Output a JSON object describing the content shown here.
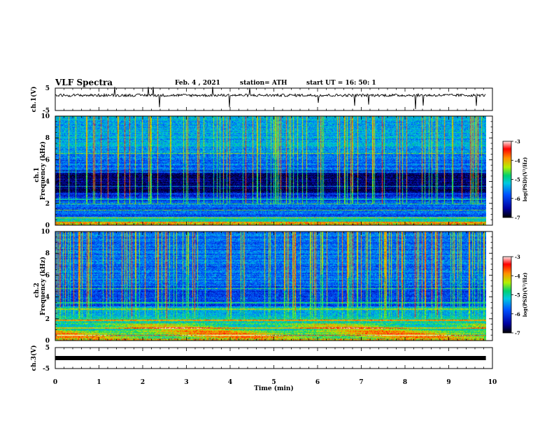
{
  "header": {
    "title": "VLF Spectra",
    "date": "Feb. 4 , 2021",
    "station": "station= ATH",
    "start": "start  UT =   16: 50: 1"
  },
  "chart_data": [
    {
      "type": "line",
      "panel": "ch1-waveform",
      "ylabel": "ch.1(V)",
      "ylim": [
        -5,
        5
      ],
      "yticks": [
        5,
        -5
      ],
      "xlim": [
        0,
        10
      ],
      "baseline_v": 1.8,
      "color": "#000000"
    },
    {
      "type": "heatmap",
      "panel": "ch1-spectrogram",
      "ylabel_line1": "ch.1",
      "ylabel_line2": "Frequency  (kHz)",
      "ylim": [
        0,
        10
      ],
      "yticks": [
        0,
        2,
        4,
        6,
        8,
        10
      ],
      "xlim": [
        0,
        9.85
      ],
      "colorbar": {
        "label": "log(PSD)(V²/Hz)",
        "range": [
          -7,
          -3
        ],
        "ticks": [
          -3,
          -4,
          -5,
          -6,
          -7
        ]
      }
    },
    {
      "type": "heatmap",
      "panel": "ch2-spectrogram",
      "ylabel_line1": "ch.2",
      "ylabel_line2": "Frequency  (kHz)",
      "ylim": [
        0,
        10
      ],
      "yticks": [
        0,
        2,
        4,
        6,
        8,
        10
      ],
      "xlim": [
        0,
        9.85
      ],
      "colorbar": {
        "label": "log(PSD)(V²/Hz)",
        "range": [
          -7,
          -3
        ],
        "ticks": [
          -3,
          -4,
          -5,
          -6,
          -7
        ]
      }
    },
    {
      "type": "line",
      "panel": "ch3-waveform",
      "ylabel": "ch.3(V)",
      "ylim": [
        -5,
        5
      ],
      "yticks": [
        5,
        -5
      ],
      "xlim": [
        0,
        10
      ],
      "baseline_v": 0,
      "color": "#000000"
    }
  ],
  "x_axis": {
    "label": "Time  (min)",
    "range": [
      0,
      10
    ],
    "ticks": [
      "0",
      "1",
      "2",
      "3",
      "4",
      "5",
      "6",
      "7",
      "8",
      "9",
      "10"
    ]
  },
  "colors": {
    "background": "#ffffff",
    "axis": "#000000",
    "colormap": [
      "#000020",
      "#0000a0",
      "#0050ff",
      "#00c8e0",
      "#00e070",
      "#c8f000",
      "#ff9000",
      "#ff0000",
      "#ffe0e0"
    ]
  }
}
